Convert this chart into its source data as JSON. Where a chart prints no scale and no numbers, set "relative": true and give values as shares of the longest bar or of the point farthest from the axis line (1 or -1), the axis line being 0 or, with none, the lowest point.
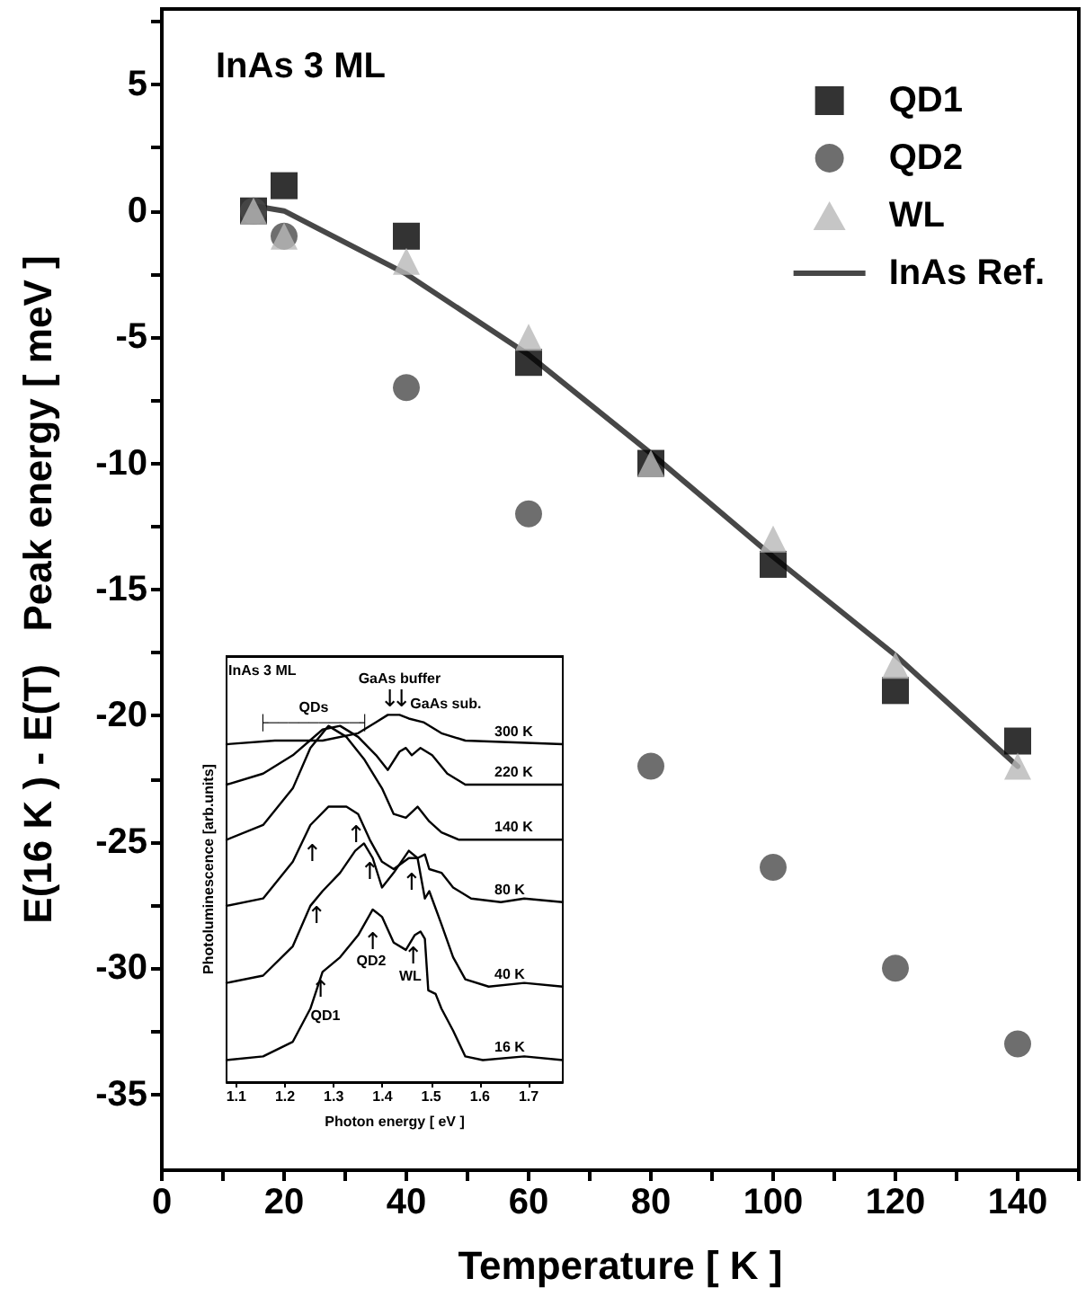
{
  "chart_data": [
    {
      "type": "scatter",
      "xlabel": "Temperature [ K ]",
      "ylabel": "E(16 K ) - E(T)   Peak energy [ meV ]",
      "annotations": [
        "InAs 3 ML"
      ],
      "xlim": [
        0,
        150
      ],
      "ylim": [
        -38,
        8
      ],
      "xticks": [
        0,
        {
          "value": 10,
          "label": null
        },
        20,
        {
          "value": 30,
          "label": null
        },
        40,
        {
          "value": 50,
          "label": null
        },
        60,
        {
          "value": 70,
          "label": null
        },
        80,
        {
          "value": 90,
          "label": null
        },
        100,
        {
          "value": 110,
          "label": null
        },
        120,
        {
          "value": 130,
          "label": null
        },
        140,
        {
          "value": 150,
          "label": null
        }
      ],
      "yticks": [
        -35,
        {
          "value": -32.5,
          "label": null
        },
        -30,
        {
          "value": -27.5,
          "label": null
        },
        -25,
        {
          "value": -22.5,
          "label": null
        },
        -20,
        {
          "value": -17.5,
          "label": null
        },
        -15,
        {
          "value": -12.5,
          "label": null
        },
        -10,
        {
          "value": -7.5,
          "label": null
        },
        -5,
        {
          "value": -2.5,
          "label": null
        },
        0,
        {
          "value": 2.5,
          "label": null
        },
        5,
        {
          "value": 7.5,
          "label": null
        }
      ],
      "legend": "top right",
      "grid": false,
      "series": [
        {
          "name": "QD1",
          "marker": "square",
          "color": "#000000",
          "x": [
            15,
            20,
            40,
            60,
            80,
            100,
            120,
            140
          ],
          "values": [
            0,
            1,
            -1,
            -6,
            -10,
            -14,
            -19,
            -21
          ]
        },
        {
          "name": "QD2",
          "marker": "circle",
          "color": "#4a4a4a",
          "x": [
            15,
            20,
            40,
            60,
            80,
            100,
            120,
            140
          ],
          "values": [
            0,
            -1,
            -7,
            -12,
            -22,
            -26,
            -30,
            -33
          ]
        },
        {
          "name": "WL",
          "marker": "triangle",
          "color": "#b8b8b8",
          "x": [
            15,
            20,
            40,
            60,
            80,
            100,
            120,
            140
          ],
          "values": [
            0,
            -1,
            -2,
            -5,
            -10,
            -13,
            -18,
            -22
          ]
        },
        {
          "name": "InAs Ref.",
          "type": "line",
          "marker": "none",
          "line_style": "solid",
          "color": "#474747",
          "x": [
            15,
            20,
            40,
            60,
            80,
            100,
            120,
            140
          ],
          "values": [
            0.2,
            0,
            -2.5,
            -5.7,
            -9.6,
            -13.7,
            -17.6,
            -22
          ]
        }
      ]
    },
    {
      "type": "line",
      "relative": true,
      "xlabel": "Photon energy [ eV ]",
      "ylabel": "Photoluminescence [arb.units]",
      "tick_labels": "x",
      "legend": false,
      "marker": "none",
      "line_style": "solid",
      "xlim": [
        1.08,
        1.77
      ],
      "xticks": [
        1.1,
        1.2,
        1.3,
        1.4,
        1.5,
        1.6,
        1.7
      ],
      "annotations": [
        "InAs 3 ML",
        "QDs",
        "├─────────┤",
        "GaAs buffer",
        "↓",
        "↓",
        "GaAs sub.",
        "QD1",
        "↑",
        "QD2",
        "↑",
        "WL",
        "↑",
        "↑",
        "↑",
        "↑",
        "↑",
        "↑"
      ],
      "series": [
        {
          "name": "16 K",
          "color": "#000000",
          "x": [
            1.08,
            1.155,
            1.216,
            1.252,
            1.277,
            1.313,
            1.35,
            1.38,
            1.399,
            1.423,
            1.448,
            1.466,
            1.478,
            1.487,
            1.494,
            1.509,
            1.521,
            1.545,
            1.57,
            1.606,
            1.691,
            1.77
          ],
          "values": [
            0.06,
            0.07,
            0.11,
            0.2,
            0.3,
            0.34,
            0.4,
            0.47,
            0.45,
            0.38,
            0.36,
            0.4,
            0.41,
            0.39,
            0.25,
            0.24,
            0.2,
            0.14,
            0.07,
            0.06,
            0.07,
            0.06
          ]
        },
        {
          "name": "40 K",
          "color": "#000000",
          "x": [
            1.08,
            1.155,
            1.216,
            1.252,
            1.277,
            1.313,
            1.344,
            1.362,
            1.38,
            1.399,
            1.423,
            1.454,
            1.472,
            1.487,
            1.496,
            1.521,
            1.545,
            1.57,
            1.618,
            1.691,
            1.77
          ],
          "values": [
            0.27,
            0.29,
            0.37,
            0.48,
            0.52,
            0.57,
            0.63,
            0.65,
            0.61,
            0.53,
            0.57,
            0.63,
            0.61,
            0.5,
            0.52,
            0.43,
            0.34,
            0.28,
            0.26,
            0.27,
            0.26
          ]
        },
        {
          "name": "80 K",
          "color": "#000000",
          "x": [
            1.08,
            1.155,
            1.216,
            1.252,
            1.289,
            1.326,
            1.35,
            1.374,
            1.399,
            1.423,
            1.454,
            1.472,
            1.487,
            1.496,
            1.521,
            1.545,
            1.582,
            1.643,
            1.691,
            1.77
          ],
          "values": [
            0.48,
            0.5,
            0.6,
            0.7,
            0.75,
            0.75,
            0.73,
            0.66,
            0.6,
            0.58,
            0.61,
            0.61,
            0.62,
            0.58,
            0.57,
            0.53,
            0.5,
            0.49,
            0.5,
            0.49
          ]
        },
        {
          "name": "140 K",
          "color": "#000000",
          "x": [
            1.08,
            1.155,
            1.216,
            1.252,
            1.289,
            1.326,
            1.362,
            1.399,
            1.423,
            1.448,
            1.472,
            1.496,
            1.521,
            1.557,
            1.643,
            1.77
          ],
          "values": [
            0.66,
            0.7,
            0.8,
            0.91,
            0.97,
            0.94,
            0.88,
            0.8,
            0.73,
            0.72,
            0.75,
            0.71,
            0.68,
            0.66,
            0.66,
            0.66
          ]
        },
        {
          "name": "220 K",
          "color": "#000000",
          "x": [
            1.08,
            1.155,
            1.216,
            1.277,
            1.313,
            1.35,
            1.387,
            1.411,
            1.435,
            1.448,
            1.46,
            1.478,
            1.502,
            1.533,
            1.57,
            1.77
          ],
          "values": [
            0.81,
            0.84,
            0.89,
            0.96,
            0.97,
            0.94,
            0.89,
            0.85,
            0.9,
            0.91,
            0.89,
            0.91,
            0.89,
            0.84,
            0.81,
            0.81
          ]
        },
        {
          "name": "300 K",
          "color": "#000000",
          "x": [
            1.08,
            1.179,
            1.277,
            1.35,
            1.387,
            1.411,
            1.435,
            1.454,
            1.484,
            1.521,
            1.57,
            1.77
          ],
          "values": [
            0.92,
            0.93,
            0.93,
            0.95,
            0.98,
            1,
            1,
            0.99,
            0.98,
            0.95,
            0.93,
            0.92
          ]
        }
      ]
    }
  ]
}
